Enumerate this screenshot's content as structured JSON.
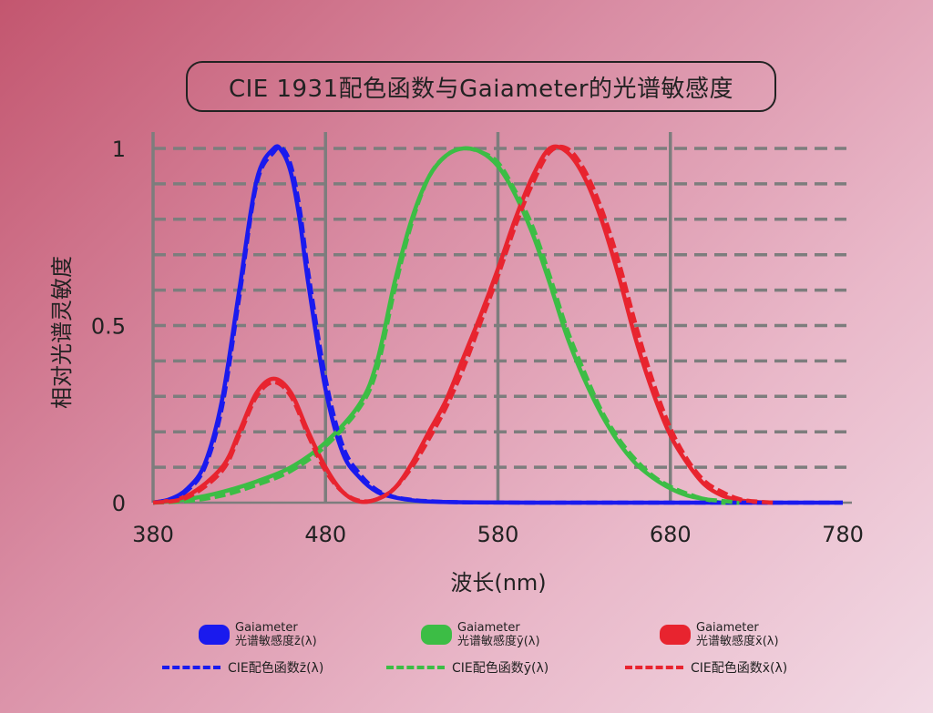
{
  "chart_data": {
    "type": "line",
    "title": "CIE 1931配色函数与Gaiameter的光谱敏感度",
    "xlabel": "波长(nm)",
    "ylabel": "相对光谱灵敏度",
    "xlim": [
      380,
      780
    ],
    "ylim": [
      0,
      1
    ],
    "x_ticks": [
      "380",
      "480",
      "580",
      "680",
      "780"
    ],
    "y_ticks": [
      "0",
      "0.5",
      "1"
    ],
    "grid": "vertical solid at x ticks, horizontal dashed every 0.1",
    "series": [
      {
        "name": "Gaiameter光谱敏感度z̄(λ)",
        "style": "solid",
        "color": "#1a1aee",
        "x": [
          380,
          390,
          400,
          410,
          420,
          430,
          440,
          450,
          455,
          460,
          465,
          470,
          480,
          490,
          500,
          510,
          520,
          530,
          540,
          560,
          600,
          650,
          700,
          780
        ],
        "y": [
          0.0,
          0.01,
          0.04,
          0.11,
          0.29,
          0.6,
          0.91,
          1.0,
          0.99,
          0.93,
          0.8,
          0.62,
          0.32,
          0.14,
          0.07,
          0.03,
          0.015,
          0.007,
          0.003,
          0.001,
          0,
          0,
          0,
          0
        ]
      },
      {
        "name": "CIE配色函数z̄(λ)",
        "style": "dashed",
        "color": "#1a1aee",
        "x": [
          380,
          390,
          400,
          410,
          420,
          430,
          440,
          450,
          455,
          460,
          465,
          470,
          480,
          490,
          500,
          510,
          520,
          530,
          540,
          560,
          600,
          650,
          700,
          780
        ],
        "y": [
          0.0,
          0.01,
          0.035,
          0.1,
          0.27,
          0.58,
          0.9,
          0.99,
          1.0,
          0.95,
          0.83,
          0.65,
          0.35,
          0.16,
          0.08,
          0.035,
          0.016,
          0.008,
          0.004,
          0.001,
          0,
          0,
          0,
          0
        ]
      },
      {
        "name": "Gaiameter光谱敏感度ȳ(λ)",
        "style": "solid",
        "color": "#3cbd45",
        "x": [
          380,
          400,
          420,
          440,
          460,
          480,
          500,
          510,
          520,
          530,
          540,
          550,
          560,
          570,
          580,
          590,
          600,
          610,
          620,
          630,
          640,
          650,
          660,
          670,
          680,
          690,
          700,
          710,
          720
        ],
        "y": [
          0.0,
          0.01,
          0.03,
          0.06,
          0.1,
          0.17,
          0.28,
          0.4,
          0.62,
          0.8,
          0.92,
          0.98,
          1.0,
          0.99,
          0.95,
          0.87,
          0.76,
          0.62,
          0.47,
          0.35,
          0.25,
          0.17,
          0.11,
          0.07,
          0.04,
          0.02,
          0.01,
          0.0,
          0.0
        ]
      },
      {
        "name": "CIE配色函数ȳ(λ)",
        "style": "dashed",
        "color": "#3cbd45",
        "x": [
          380,
          400,
          420,
          440,
          460,
          480,
          500,
          510,
          520,
          530,
          540,
          550,
          560,
          570,
          580,
          590,
          600,
          610,
          620,
          630,
          640,
          650,
          660,
          670,
          680,
          690,
          700,
          710,
          720
        ],
        "y": [
          0.0,
          0.005,
          0.02,
          0.05,
          0.09,
          0.16,
          0.27,
          0.38,
          0.6,
          0.79,
          0.92,
          0.98,
          1.0,
          0.99,
          0.96,
          0.88,
          0.78,
          0.64,
          0.49,
          0.37,
          0.26,
          0.18,
          0.12,
          0.075,
          0.045,
          0.025,
          0.01,
          0.005,
          0.0
        ]
      },
      {
        "name": "Gaiameter光谱敏感度x̄(λ)",
        "style": "solid",
        "color": "#e8242f",
        "x": [
          380,
          400,
          420,
          430,
          440,
          450,
          460,
          470,
          480,
          490,
          500,
          510,
          520,
          530,
          540,
          550,
          560,
          570,
          580,
          590,
          600,
          610,
          620,
          630,
          640,
          650,
          660,
          670,
          680,
          690,
          700,
          710,
          720,
          730,
          740
        ],
        "y": [
          0.0,
          0.02,
          0.1,
          0.2,
          0.31,
          0.35,
          0.31,
          0.2,
          0.1,
          0.03,
          0.003,
          0.01,
          0.04,
          0.11,
          0.2,
          0.29,
          0.41,
          0.53,
          0.66,
          0.8,
          0.92,
          1.0,
          0.99,
          0.92,
          0.8,
          0.64,
          0.46,
          0.31,
          0.19,
          0.11,
          0.05,
          0.02,
          0.007,
          0.002,
          0.0
        ]
      },
      {
        "name": "CIE配色函数x̄(λ)",
        "style": "dashed",
        "color": "#e8242f",
        "x": [
          380,
          400,
          420,
          430,
          440,
          450,
          460,
          470,
          480,
          490,
          500,
          510,
          520,
          530,
          540,
          550,
          560,
          570,
          580,
          590,
          600,
          610,
          620,
          630,
          640,
          650,
          660,
          670,
          680,
          690,
          700,
          710,
          720,
          730,
          740
        ],
        "y": [
          0.0,
          0.015,
          0.09,
          0.19,
          0.3,
          0.34,
          0.3,
          0.19,
          0.09,
          0.03,
          0.005,
          0.01,
          0.04,
          0.1,
          0.18,
          0.27,
          0.38,
          0.51,
          0.64,
          0.78,
          0.9,
          0.99,
          1.0,
          0.94,
          0.83,
          0.68,
          0.5,
          0.34,
          0.21,
          0.12,
          0.06,
          0.03,
          0.01,
          0.003,
          0.0
        ]
      }
    ]
  },
  "legend": {
    "row1": [
      {
        "line1": "Gaiameter",
        "line2": "光谱敏感度z̄(λ)",
        "color": "#1a1aee"
      },
      {
        "line1": "Gaiameter",
        "line2": "光谱敏感度ȳ(λ)",
        "color": "#3cbd45"
      },
      {
        "line1": "Gaiameter",
        "line2": "光谱敏感度x̄(λ)",
        "color": "#e8242f"
      }
    ],
    "row2": [
      {
        "text": "CIE配色函数z̄(λ)",
        "color": "#1a1aee"
      },
      {
        "text": "CIE配色函数ȳ(λ)",
        "color": "#3cbd45"
      },
      {
        "text": "CIE配色函数x̄(λ)",
        "color": "#e8242f"
      }
    ]
  }
}
